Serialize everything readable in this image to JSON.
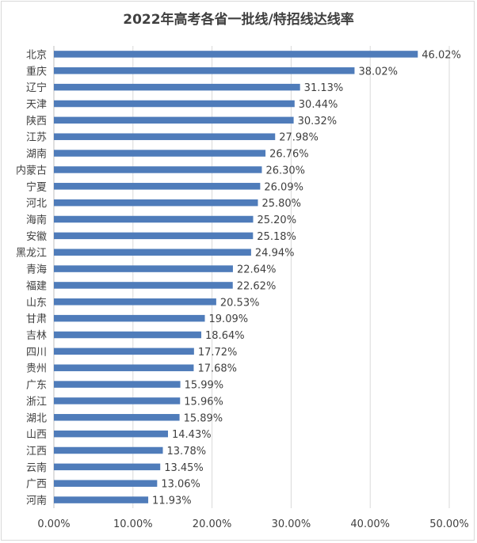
{
  "chart_data": {
    "type": "bar",
    "orientation": "horizontal",
    "title": "2022年高考各省一批线/特招线达线率",
    "xlabel": "",
    "ylabel": "",
    "xlim": [
      0,
      50
    ],
    "x_ticks": [
      "0.00%",
      "10.00%",
      "20.00%",
      "30.00%",
      "40.00%",
      "50.00%"
    ],
    "grid": true,
    "legend": "none",
    "bar_color": "#4f7cba",
    "categories": [
      "北京",
      "重庆",
      "辽宁",
      "天津",
      "陕西",
      "江苏",
      "湖南",
      "内蒙古",
      "宁夏",
      "河北",
      "海南",
      "安徽",
      "黑龙江",
      "青海",
      "福建",
      "山东",
      "甘肃",
      "吉林",
      "四川",
      "贵州",
      "广东",
      "浙江",
      "湖北",
      "山西",
      "江西",
      "云南",
      "广西",
      "河南"
    ],
    "values": [
      46.02,
      38.02,
      31.13,
      30.44,
      30.32,
      27.98,
      26.76,
      26.3,
      26.09,
      25.8,
      25.2,
      25.18,
      24.94,
      22.64,
      22.62,
      20.53,
      19.09,
      18.64,
      17.72,
      17.68,
      15.99,
      15.96,
      15.89,
      14.43,
      13.78,
      13.45,
      13.06,
      11.93
    ],
    "value_labels": [
      "46.02%",
      "38.02%",
      "31.13%",
      "30.44%",
      "30.32%",
      "27.98%",
      "26.76%",
      "26.30%",
      "26.09%",
      "25.80%",
      "25.20%",
      "25.18%",
      "24.94%",
      "22.64%",
      "22.62%",
      "20.53%",
      "19.09%",
      "18.64%",
      "17.72%",
      "17.68%",
      "15.99%",
      "15.96%",
      "15.89%",
      "14.43%",
      "13.78%",
      "13.45%",
      "13.06%",
      "11.93%"
    ]
  }
}
